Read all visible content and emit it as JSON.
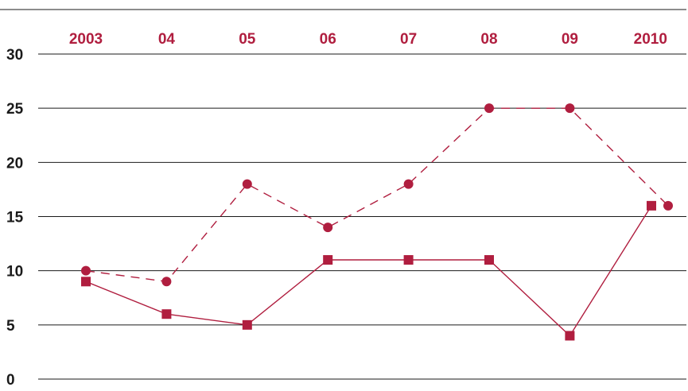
{
  "chart_data": {
    "type": "line",
    "categories": [
      "2003",
      "04",
      "05",
      "06",
      "07",
      "08",
      "09",
      "2010"
    ],
    "x_tick_labels": [
      "2003",
      "04",
      "05",
      "06",
      "07",
      "08",
      "09",
      "2010"
    ],
    "y_tick_labels": [
      "0",
      "5",
      "10",
      "15",
      "20",
      "25",
      "30"
    ],
    "ylim": [
      0,
      30
    ],
    "y_ticks": [
      0,
      5,
      10,
      15,
      20,
      25,
      30
    ],
    "grid": "horizontal",
    "x_axis_position": "top",
    "legend": "none",
    "title": "",
    "xlabel": "",
    "ylabel": "",
    "colors": {
      "series": "#b01e3f",
      "grid": "#1a1a1a",
      "label": "#1a1a1a"
    },
    "series": [
      {
        "style": "dashed",
        "marker": "circle",
        "values": [
          10,
          9,
          18,
          14,
          18,
          25,
          25,
          16
        ]
      },
      {
        "style": "solid",
        "marker": "square",
        "values": [
          9,
          6,
          5,
          11,
          11,
          11,
          4,
          16
        ]
      }
    ]
  }
}
